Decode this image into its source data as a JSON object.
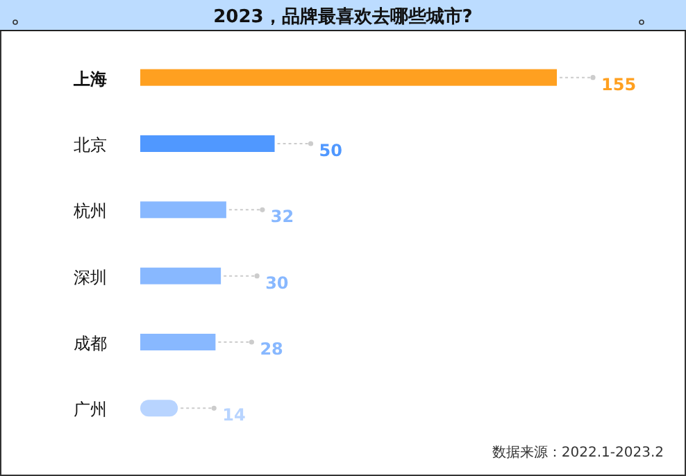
{
  "chart_data": {
    "type": "bar",
    "orientation": "horizontal",
    "title": "2023，品牌最喜欢去哪些城市?",
    "categories": [
      "上海",
      "北京",
      "杭州",
      "深圳",
      "成都",
      "广州"
    ],
    "values": [
      155,
      50,
      32,
      30,
      28,
      14
    ],
    "colors": [
      "#ffa020",
      "#5098ff",
      "#88b8ff",
      "#88b8ff",
      "#88b8ff",
      "#b8d4ff"
    ],
    "data_labels": true,
    "tick_labels": "y",
    "annotations": [
      "数据来源：2022.1-2023.2"
    ]
  }
}
